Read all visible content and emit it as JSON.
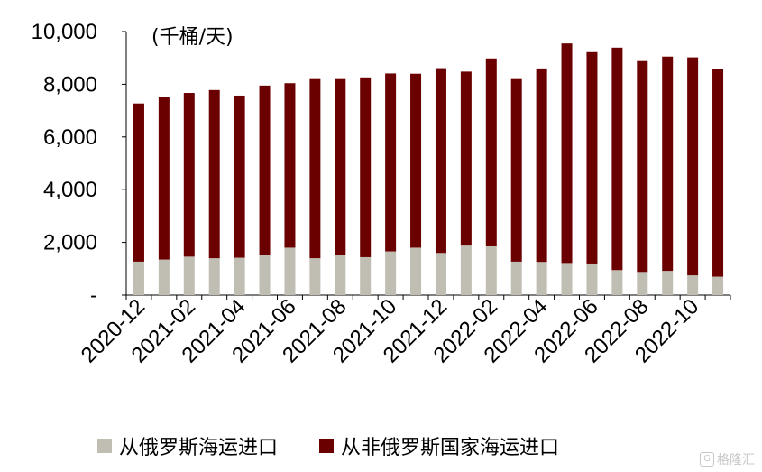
{
  "chart_data": {
    "type": "bar",
    "stacked": true,
    "unit_label": "(千桶/天)",
    "y_ticks": [
      "-",
      "2,000",
      "4,000",
      "6,000",
      "8,000",
      "10,000"
    ],
    "ylim": [
      0,
      10000
    ],
    "grid": false,
    "legend_position": "bottom",
    "x_tick_labels": [
      "2020-12",
      "2021-02",
      "2021-04",
      "2021-06",
      "2021-08",
      "2021-10",
      "2021-12",
      "2022-02",
      "2022-04",
      "2022-06",
      "2022-08",
      "2022-10"
    ],
    "categories": [
      "2020-12",
      "2021-01",
      "2021-02",
      "2021-03",
      "2021-04",
      "2021-05",
      "2021-06",
      "2021-07",
      "2021-08",
      "2021-09",
      "2021-10",
      "2021-11",
      "2021-12",
      "2022-01",
      "2022-02",
      "2022-03",
      "2022-04",
      "2022-05",
      "2022-06",
      "2022-07",
      "2022-08",
      "2022-09",
      "2022-10",
      "2022-11"
    ],
    "series": [
      {
        "name": "从俄罗斯海运进口",
        "color": "#c0bdb2",
        "values": [
          1270,
          1350,
          1460,
          1400,
          1420,
          1520,
          1800,
          1400,
          1520,
          1440,
          1660,
          1800,
          1600,
          1880,
          1850,
          1270,
          1260,
          1220,
          1200,
          950,
          880,
          920,
          750,
          700
        ]
      },
      {
        "name": "从非俄罗斯国家海运进口",
        "color": "#6b0000",
        "values": [
          6000,
          6170,
          6210,
          6380,
          6150,
          6430,
          6240,
          6830,
          6710,
          6820,
          6750,
          6600,
          7010,
          6600,
          7130,
          6960,
          7340,
          8330,
          8020,
          8440,
          8000,
          8130,
          8270,
          7880
        ]
      }
    ]
  },
  "legend": {
    "item1": "从俄罗斯海运进口",
    "item2": "从非俄罗斯国家海运进口"
  },
  "watermark": {
    "text": "格隆汇"
  }
}
